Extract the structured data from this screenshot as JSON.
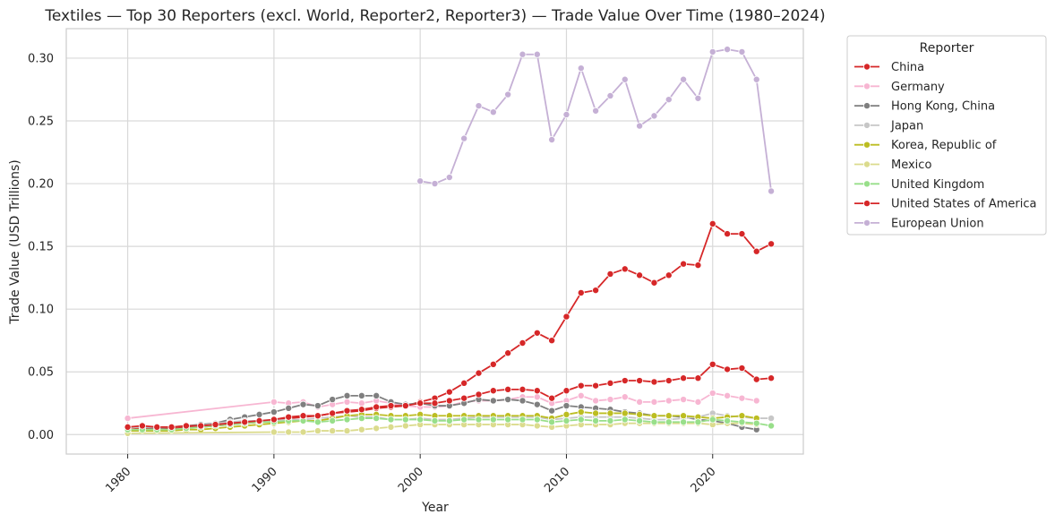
{
  "chart_data": {
    "type": "line",
    "title": "Textiles — Top 30 Reporters (excl. World, Reporter2, Reporter3) — Trade Value Over Time (1980–2024)",
    "xlabel": "Year",
    "ylabel": "Trade Value (USD Trillions)",
    "xlim": [
      1975.8,
      2026.2
    ],
    "ylim": [
      -0.0155,
      0.3235
    ],
    "xticks": [
      1980,
      1990,
      2000,
      2010,
      2020
    ],
    "yticks": [
      0.0,
      0.05,
      0.1,
      0.15,
      0.2,
      0.25,
      0.3
    ],
    "ytick_labels": [
      "0.00",
      "0.05",
      "0.10",
      "0.15",
      "0.20",
      "0.25",
      "0.30"
    ],
    "grid": true,
    "legend": {
      "title": "Reporter",
      "placement": "outside-upper-right"
    },
    "series": [
      {
        "name": "China",
        "color": "#d62728",
        "x": [
          1980,
          1981,
          1982,
          1983,
          1984,
          1985,
          1986,
          1987,
          1988,
          1989,
          1990,
          1991,
          1992,
          1993,
          1994,
          1995,
          1996,
          1997,
          1998,
          1999,
          2000,
          2001,
          2002,
          2003,
          2004,
          2005,
          2006,
          2007,
          2008,
          2009,
          2010,
          2011,
          2012,
          2013,
          2014,
          2015,
          2016,
          2017,
          2018,
          2019,
          2020,
          2021,
          2022,
          2023,
          2024
        ],
        "y": [
          0.004,
          0.005,
          0.005,
          0.005,
          0.006,
          0.006,
          0.007,
          0.008,
          0.009,
          0.01,
          0.011,
          0.013,
          0.014,
          0.015,
          0.017,
          0.018,
          0.019,
          0.021,
          0.022,
          0.023,
          0.026,
          0.029,
          0.034,
          0.041,
          0.049,
          0.056,
          0.065,
          0.073,
          0.081,
          0.075,
          0.094,
          0.113,
          0.115,
          0.128,
          0.132,
          0.127,
          0.121,
          0.127,
          0.136,
          0.135,
          0.168,
          0.16,
          0.16,
          0.146,
          0.152
        ]
      },
      {
        "name": "Germany",
        "color": "#f7b6d2",
        "x": [
          1980,
          1990,
          1991,
          1992,
          1993,
          1994,
          1995,
          1996,
          1997,
          1998,
          1999,
          2000,
          2001,
          2002,
          2003,
          2004,
          2005,
          2006,
          2007,
          2008,
          2009,
          2010,
          2011,
          2012,
          2013,
          2014,
          2015,
          2016,
          2017,
          2018,
          2019,
          2020,
          2021,
          2022,
          2023
        ],
        "y": [
          0.013,
          0.026,
          0.025,
          0.026,
          0.022,
          0.024,
          0.026,
          0.025,
          0.027,
          0.025,
          0.023,
          0.022,
          0.022,
          0.023,
          0.026,
          0.027,
          0.027,
          0.028,
          0.03,
          0.03,
          0.025,
          0.027,
          0.031,
          0.027,
          0.028,
          0.03,
          0.026,
          0.026,
          0.027,
          0.028,
          0.026,
          0.033,
          0.031,
          0.029,
          0.027
        ]
      },
      {
        "name": "Hong Kong, China",
        "color": "#7f7f7f",
        "x": [
          1980,
          1981,
          1982,
          1983,
          1984,
          1985,
          1986,
          1987,
          1988,
          1989,
          1990,
          1991,
          1992,
          1993,
          1994,
          1995,
          1996,
          1997,
          1998,
          1999,
          2000,
          2001,
          2002,
          2003,
          2004,
          2005,
          2006,
          2007,
          2008,
          2009,
          2010,
          2011,
          2012,
          2013,
          2014,
          2015,
          2016,
          2017,
          2018,
          2019,
          2020,
          2021,
          2022,
          2023
        ],
        "y": [
          0.006,
          0.006,
          0.005,
          0.006,
          0.007,
          0.008,
          0.009,
          0.012,
          0.014,
          0.016,
          0.018,
          0.021,
          0.024,
          0.023,
          0.028,
          0.031,
          0.031,
          0.031,
          0.026,
          0.024,
          0.025,
          0.023,
          0.023,
          0.025,
          0.028,
          0.027,
          0.028,
          0.027,
          0.024,
          0.019,
          0.023,
          0.022,
          0.021,
          0.02,
          0.018,
          0.017,
          0.015,
          0.015,
          0.014,
          0.012,
          0.011,
          0.009,
          0.006,
          0.004
        ]
      },
      {
        "name": "Japan",
        "color": "#c7c7c7",
        "x": [
          1980,
          1981,
          1982,
          1983,
          1984,
          1985,
          1986,
          1987,
          1988,
          1989,
          1990,
          1991,
          1992,
          1993,
          1994,
          1995,
          1996,
          1997,
          1998,
          1999,
          2000,
          2001,
          2002,
          2003,
          2004,
          2005,
          2006,
          2007,
          2008,
          2009,
          2010,
          2011,
          2012,
          2013,
          2014,
          2015,
          2016,
          2017,
          2018,
          2019,
          2020,
          2021,
          2022,
          2023,
          2024
        ],
        "y": [
          0.006,
          0.006,
          0.006,
          0.006,
          0.007,
          0.007,
          0.009,
          0.01,
          0.011,
          0.011,
          0.011,
          0.012,
          0.012,
          0.013,
          0.014,
          0.015,
          0.014,
          0.014,
          0.012,
          0.012,
          0.013,
          0.012,
          0.012,
          0.013,
          0.014,
          0.014,
          0.014,
          0.014,
          0.014,
          0.012,
          0.013,
          0.014,
          0.014,
          0.014,
          0.014,
          0.013,
          0.012,
          0.012,
          0.013,
          0.014,
          0.017,
          0.015,
          0.014,
          0.013,
          0.013
        ]
      },
      {
        "name": "Korea, Republic of",
        "color": "#bcbd22",
        "x": [
          1980,
          1981,
          1982,
          1983,
          1984,
          1985,
          1986,
          1987,
          1988,
          1989,
          1990,
          1991,
          1992,
          1993,
          1994,
          1995,
          1996,
          1997,
          1998,
          1999,
          2000,
          2001,
          2002,
          2003,
          2004,
          2005,
          2006,
          2007,
          2008,
          2009,
          2010,
          2011,
          2012,
          2013,
          2014,
          2015,
          2016,
          2017,
          2018,
          2019,
          2020,
          2021,
          2022,
          2023
        ],
        "y": [
          0.003,
          0.003,
          0.003,
          0.003,
          0.004,
          0.004,
          0.005,
          0.006,
          0.007,
          0.008,
          0.009,
          0.01,
          0.011,
          0.011,
          0.013,
          0.015,
          0.016,
          0.016,
          0.015,
          0.015,
          0.016,
          0.015,
          0.015,
          0.015,
          0.015,
          0.015,
          0.015,
          0.015,
          0.015,
          0.013,
          0.016,
          0.018,
          0.017,
          0.017,
          0.017,
          0.016,
          0.015,
          0.015,
          0.015,
          0.014,
          0.013,
          0.014,
          0.015,
          0.013
        ]
      },
      {
        "name": "Mexico",
        "color": "#dbdb8d",
        "x": [
          1980,
          1990,
          1991,
          1992,
          1993,
          1994,
          1995,
          1996,
          1997,
          1998,
          1999,
          2000,
          2001,
          2002,
          2003,
          2004,
          2005,
          2006,
          2007,
          2008,
          2009,
          2010,
          2011,
          2012,
          2013,
          2014,
          2015,
          2016,
          2017,
          2018,
          2019,
          2020,
          2021,
          2022,
          2023
        ],
        "y": [
          0.001,
          0.002,
          0.002,
          0.002,
          0.003,
          0.003,
          0.003,
          0.004,
          0.005,
          0.006,
          0.007,
          0.008,
          0.008,
          0.008,
          0.008,
          0.008,
          0.008,
          0.008,
          0.008,
          0.007,
          0.006,
          0.007,
          0.008,
          0.008,
          0.008,
          0.009,
          0.009,
          0.009,
          0.009,
          0.009,
          0.009,
          0.008,
          0.009,
          0.009,
          0.008
        ]
      },
      {
        "name": "United Kingdom",
        "color": "#98df8a",
        "x": [
          1980,
          1981,
          1982,
          1983,
          1984,
          1985,
          1986,
          1987,
          1988,
          1989,
          1990,
          1991,
          1992,
          1993,
          1994,
          1995,
          1996,
          1997,
          1998,
          1999,
          2000,
          2001,
          2002,
          2003,
          2004,
          2005,
          2006,
          2007,
          2008,
          2009,
          2010,
          2011,
          2012,
          2013,
          2014,
          2015,
          2016,
          2017,
          2018,
          2019,
          2020,
          2021,
          2022,
          2023,
          2024
        ],
        "y": [
          0.004,
          0.004,
          0.004,
          0.004,
          0.005,
          0.006,
          0.007,
          0.008,
          0.009,
          0.01,
          0.01,
          0.011,
          0.011,
          0.01,
          0.011,
          0.012,
          0.013,
          0.013,
          0.012,
          0.012,
          0.012,
          0.011,
          0.011,
          0.012,
          0.012,
          0.012,
          0.012,
          0.012,
          0.012,
          0.01,
          0.011,
          0.012,
          0.011,
          0.011,
          0.012,
          0.011,
          0.01,
          0.01,
          0.01,
          0.01,
          0.012,
          0.011,
          0.01,
          0.009,
          0.007
        ]
      },
      {
        "name": "United States of America",
        "color": "#d62728",
        "x": [
          1980,
          1981,
          1982,
          1983,
          1984,
          1985,
          1986,
          1987,
          1988,
          1989,
          1990,
          1991,
          1992,
          1993,
          1994,
          1995,
          1996,
          1997,
          1998,
          1999,
          2000,
          2001,
          2002,
          2003,
          2004,
          2005,
          2006,
          2007,
          2008,
          2009,
          2010,
          2011,
          2012,
          2013,
          2014,
          2015,
          2016,
          2017,
          2018,
          2019,
          2020,
          2021,
          2022,
          2023,
          2024
        ],
        "y": [
          0.006,
          0.007,
          0.006,
          0.006,
          0.007,
          0.007,
          0.008,
          0.009,
          0.01,
          0.011,
          0.012,
          0.014,
          0.015,
          0.015,
          0.017,
          0.019,
          0.02,
          0.022,
          0.023,
          0.023,
          0.025,
          0.025,
          0.027,
          0.029,
          0.032,
          0.035,
          0.036,
          0.036,
          0.035,
          0.029,
          0.035,
          0.039,
          0.039,
          0.041,
          0.043,
          0.043,
          0.042,
          0.043,
          0.045,
          0.045,
          0.056,
          0.052,
          0.053,
          0.044,
          0.045
        ]
      },
      {
        "name": "European Union",
        "color": "#c5b0d5",
        "x": [
          2000,
          2001,
          2002,
          2003,
          2004,
          2005,
          2006,
          2007,
          2008,
          2009,
          2010,
          2011,
          2012,
          2013,
          2014,
          2015,
          2016,
          2017,
          2018,
          2019,
          2020,
          2021,
          2022,
          2023,
          2024
        ],
        "y": [
          0.202,
          0.2,
          0.205,
          0.236,
          0.262,
          0.257,
          0.271,
          0.303,
          0.303,
          0.235,
          0.255,
          0.292,
          0.258,
          0.27,
          0.283,
          0.246,
          0.254,
          0.267,
          0.283,
          0.268,
          0.305,
          0.307,
          0.305,
          0.283,
          0.194
        ]
      }
    ]
  }
}
